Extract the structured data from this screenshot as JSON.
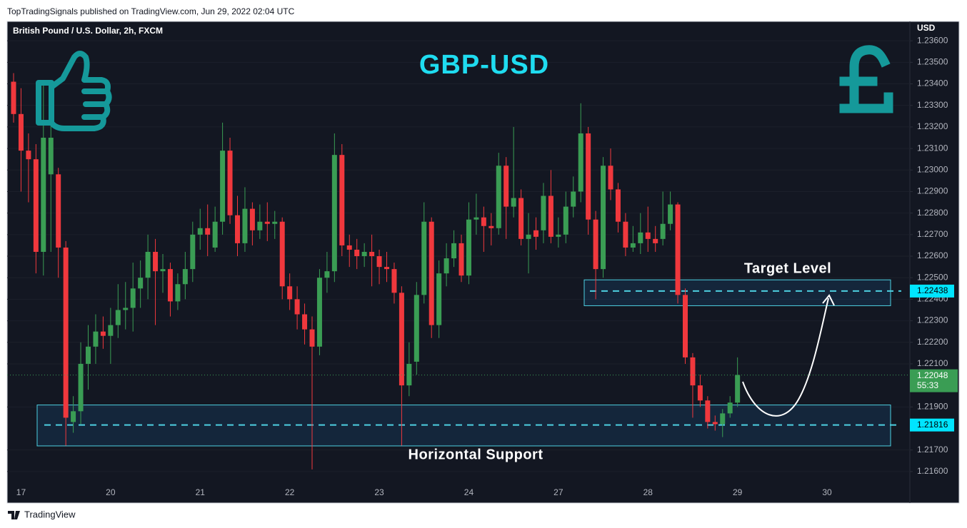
{
  "header": "TopTradingSignals published on TradingView.com, Jun 29, 2022 02:04 UTC",
  "footer": "TradingView",
  "chart_data": {
    "type": "candlestick",
    "title": "GBP-USD",
    "symbol": "British Pound / U.S. Dollar, 2h, FXCM",
    "y_axis_label": "USD",
    "up_color": "#3a9d54",
    "down_color": "#f0383d",
    "zone_color": "#4dd0e1",
    "title_color": "#1fdcf0",
    "grid": true,
    "ylim": [
      1.2153,
      1.2369
    ],
    "yticks": [
      {
        "value": 1.216,
        "label": "1.21600"
      },
      {
        "value": 1.217,
        "label": "1.21700"
      },
      {
        "value": 1.219,
        "label": "1.21900"
      },
      {
        "value": 1.221,
        "label": "1.22100"
      },
      {
        "value": 1.222,
        "label": "1.22200"
      },
      {
        "value": 1.223,
        "label": "1.22300"
      },
      {
        "value": 1.224,
        "label": "1.22400"
      },
      {
        "value": 1.225,
        "label": "1.22500"
      },
      {
        "value": 1.226,
        "label": "1.22600"
      },
      {
        "value": 1.227,
        "label": "1.22700"
      },
      {
        "value": 1.228,
        "label": "1.22800"
      },
      {
        "value": 1.229,
        "label": "1.22900"
      },
      {
        "value": 1.23,
        "label": "1.23000"
      },
      {
        "value": 1.231,
        "label": "1.23100"
      },
      {
        "value": 1.232,
        "label": "1.23200"
      },
      {
        "value": 1.233,
        "label": "1.23300"
      },
      {
        "value": 1.234,
        "label": "1.23400"
      },
      {
        "value": 1.235,
        "label": "1.23500"
      },
      {
        "value": 1.236,
        "label": "1.23600"
      }
    ],
    "categories": [
      null,
      "17",
      null,
      null,
      null,
      null,
      null,
      null,
      null,
      null,
      null,
      null,
      null,
      "20",
      null,
      null,
      null,
      null,
      null,
      null,
      null,
      null,
      null,
      null,
      null,
      "21",
      null,
      null,
      null,
      null,
      null,
      null,
      null,
      null,
      null,
      null,
      null,
      "22",
      null,
      null,
      null,
      null,
      null,
      null,
      null,
      null,
      null,
      null,
      null,
      "23",
      null,
      null,
      null,
      null,
      null,
      null,
      null,
      null,
      null,
      null,
      null,
      "24",
      null,
      null,
      null,
      null,
      null,
      null,
      null,
      null,
      null,
      null,
      null,
      "27",
      null,
      null,
      null,
      null,
      null,
      null,
      null,
      null,
      null,
      null,
      null,
      "28",
      null,
      null,
      null,
      null,
      null,
      null,
      null,
      null,
      null,
      null,
      null,
      "29",
      null,
      null,
      null,
      null,
      null,
      null,
      null,
      null,
      null,
      null,
      null,
      "30"
    ],
    "open": [
      1.2341,
      1.2326,
      1.2309,
      1.2305,
      1.2262,
      1.2298,
      1.2298,
      1.2264,
      1.2183,
      1.2188,
      1.221,
      1.2218,
      1.2225,
      1.2223,
      1.2228,
      1.2235,
      1.2236,
      1.2245,
      1.225,
      1.2262,
      1.2253,
      1.2254,
      1.2239,
      1.2247,
      1.2254,
      1.227,
      1.2273,
      1.2264,
      1.2276,
      1.2309,
      1.2279,
      1.2266,
      1.2282,
      1.2272,
      1.2276,
      1.2275,
      1.2276,
      1.2246,
      1.224,
      1.2233,
      1.2226,
      1.2218,
      1.225,
      1.2253,
      1.2307,
      1.2265,
      1.2263,
      1.226,
      1.2262,
      1.226,
      1.2255,
      1.2254,
      1.2243,
      1.22,
      1.2211,
      1.2242,
      1.2276,
      1.2228,
      1.2252,
      1.2259,
      1.2266,
      1.2251,
      1.2277,
      1.2278,
      1.2274,
      1.2273,
      1.2302,
      1.2283,
      1.2287,
      1.2268,
      1.2272,
      1.2272,
      1.2288,
      1.2269,
      1.227,
      1.2283,
      1.229,
      1.2317,
      1.2277,
      1.2254,
      1.2302,
      1.2291,
      1.2276,
      1.2264,
      1.2266,
      1.2271,
      1.2268,
      1.2268,
      1.2275,
      1.2284,
      1.2242,
      1.2213,
      1.22,
      1.2193,
      1.2183,
      1.2182,
      1.2187,
      1.2192,
      null,
      null,
      null,
      null,
      null,
      null,
      null,
      null,
      null,
      null,
      null,
      null
    ],
    "high": [
      1.2345,
      1.2338,
      1.2317,
      1.2312,
      1.234,
      1.233,
      1.2301,
      1.2267,
      1.2195,
      1.222,
      1.2228,
      1.2233,
      1.2232,
      1.2236,
      1.2247,
      1.2248,
      1.2257,
      1.2258,
      1.227,
      1.2268,
      1.2261,
      1.2257,
      1.2252,
      1.2262,
      1.2276,
      1.2282,
      1.2284,
      1.2283,
      1.2322,
      1.2315,
      1.2288,
      1.2292,
      1.2285,
      1.2284,
      1.2285,
      1.2281,
      1.2278,
      1.2252,
      1.2246,
      1.2238,
      1.2232,
      1.2254,
      1.2262,
      1.2317,
      1.2312,
      1.227,
      1.2268,
      1.2266,
      1.227,
      1.2263,
      1.2262,
      1.2257,
      1.2246,
      1.222,
      1.2248,
      1.2285,
      1.2278,
      1.2258,
      1.2266,
      1.2272,
      1.227,
      1.2285,
      1.2289,
      1.2283,
      1.228,
      1.2308,
      1.2306,
      1.232,
      1.2291,
      1.228,
      1.2278,
      1.2294,
      1.23,
      1.2278,
      1.229,
      1.2297,
      1.2331,
      1.232,
      1.2281,
      1.2306,
      1.231,
      1.2294,
      1.228,
      1.2274,
      1.228,
      1.2283,
      1.2274,
      1.229,
      1.229,
      1.2285,
      1.2245,
      1.2215,
      1.2205,
      1.2195,
      1.2186,
      1.2189,
      1.2195,
      1.2213,
      null,
      null,
      null,
      null,
      null,
      null,
      null,
      null,
      null,
      null,
      null,
      null
    ],
    "low": [
      1.2322,
      1.229,
      1.2285,
      1.2252,
      1.2251,
      1.2262,
      1.225,
      1.2172,
      1.2178,
      1.2182,
      1.2198,
      1.221,
      1.2217,
      1.221,
      1.2222,
      1.2226,
      1.2225,
      1.2236,
      1.224,
      1.2228,
      1.2243,
      1.2232,
      1.2235,
      1.224,
      1.2248,
      1.2263,
      1.226,
      1.2262,
      1.227,
      1.2275,
      1.226,
      1.2262,
      1.2265,
      1.2268,
      1.2267,
      1.2268,
      1.224,
      1.2235,
      1.2226,
      1.2219,
      1.2161,
      1.2214,
      1.2243,
      1.2248,
      1.226,
      1.2255,
      1.2254,
      1.2255,
      1.2246,
      1.2247,
      1.2248,
      1.2238,
      1.2172,
      1.2195,
      1.2205,
      1.2238,
      1.2222,
      1.2222,
      1.2246,
      1.2255,
      1.2248,
      1.2247,
      1.227,
      1.2262,
      1.2265,
      1.227,
      1.2268,
      1.2278,
      1.2265,
      1.2252,
      1.2263,
      1.2266,
      1.2266,
      1.2264,
      1.2266,
      1.2278,
      1.2285,
      1.227,
      1.224,
      1.225,
      1.2286,
      1.2271,
      1.226,
      1.2262,
      1.2261,
      1.2262,
      1.2262,
      1.2265,
      1.2272,
      1.2238,
      1.221,
      1.2185,
      1.219,
      1.218,
      1.2179,
      1.2176,
      1.2185,
      1.219,
      null,
      null,
      null,
      null,
      null,
      null,
      null,
      null,
      null,
      null,
      null,
      null
    ],
    "close": [
      1.2326,
      1.2309,
      1.2305,
      1.2262,
      1.2315,
      1.2315,
      1.2264,
      1.2185,
      1.2188,
      1.221,
      1.2218,
      1.2225,
      1.2223,
      1.2228,
      1.2235,
      1.2236,
      1.2245,
      1.225,
      1.2262,
      1.2253,
      1.2254,
      1.2239,
      1.2247,
      1.2254,
      1.227,
      1.2273,
      1.227,
      1.2276,
      1.2309,
      1.2279,
      1.2266,
      1.2282,
      1.2272,
      1.2276,
      1.2275,
      1.2276,
      1.2246,
      1.224,
      1.2233,
      1.2226,
      1.2218,
      1.225,
      1.2253,
      1.2307,
      1.2265,
      1.2263,
      1.226,
      1.2262,
      1.226,
      1.2255,
      1.2254,
      1.2243,
      1.22,
      1.221,
      1.2242,
      1.2276,
      1.2228,
      1.2252,
      1.2259,
      1.2266,
      1.2251,
      1.2277,
      1.2278,
      1.2274,
      1.2273,
      1.2302,
      1.2283,
      1.2287,
      1.2268,
      1.227,
      1.2269,
      1.2288,
      1.2269,
      1.227,
      1.2283,
      1.229,
      1.2317,
      1.2277,
      1.2254,
      1.2302,
      1.2291,
      1.2276,
      1.2264,
      1.2266,
      1.2271,
      1.2268,
      1.2266,
      1.2275,
      1.2284,
      1.2242,
      1.2213,
      1.22,
      1.2193,
      1.2183,
      1.2182,
      1.2187,
      1.2192,
      1.22048,
      null,
      null,
      null,
      null,
      null,
      null,
      null,
      null,
      null,
      null,
      null,
      null
    ],
    "zones": [
      {
        "label": "Target Level",
        "range": [
          1.2237,
          1.2249
        ],
        "level": {
          "value": 1.22438,
          "label": "1.22438"
        }
      },
      {
        "label": "Horizontal Support",
        "range": [
          1.21719,
          1.21909
        ],
        "level": {
          "value": 1.21816,
          "label": "1.21816"
        }
      }
    ],
    "last_price": {
      "value": 1.22048,
      "label": "1.22048",
      "countdown": "55:33"
    }
  }
}
